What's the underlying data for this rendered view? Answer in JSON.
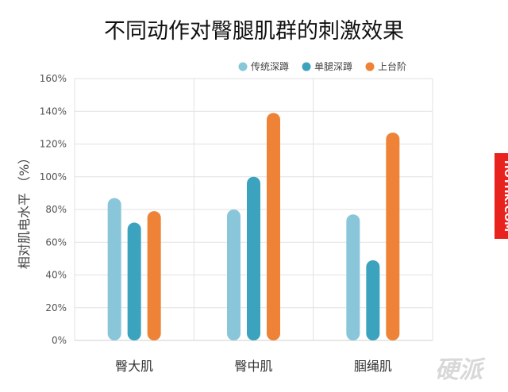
{
  "chart_data": {
    "type": "bar",
    "title": "不同动作对臀腿肌群的刺激效果",
    "ylabel": "相对肌电水平 （%）",
    "xlabel": "",
    "categories": [
      "臀大肌",
      "臀中肌",
      "腘绳肌"
    ],
    "series": [
      {
        "name": "传统深蹲",
        "values": [
          87,
          80,
          77
        ],
        "color": "#8ac6d9"
      },
      {
        "name": "单腿深蹲",
        "values": [
          72,
          100,
          49
        ],
        "color": "#3ba3bd"
      },
      {
        "name": "上台阶",
        "values": [
          79,
          139,
          127
        ],
        "color": "#ee8236"
      }
    ],
    "ylim": [
      0,
      160
    ],
    "yticks": [
      0,
      20,
      40,
      60,
      80,
      100,
      120,
      140,
      160
    ],
    "ytick_labels": [
      "0%",
      "20%",
      "40%",
      "60%",
      "80%",
      "100%",
      "120%",
      "140%",
      "160%"
    ],
    "legend_position": "top-right",
    "grid": true
  },
  "side_banner": {
    "text": "HOTHK.COM",
    "color": "#e8221d"
  },
  "watermark": {
    "text": "硬派"
  }
}
